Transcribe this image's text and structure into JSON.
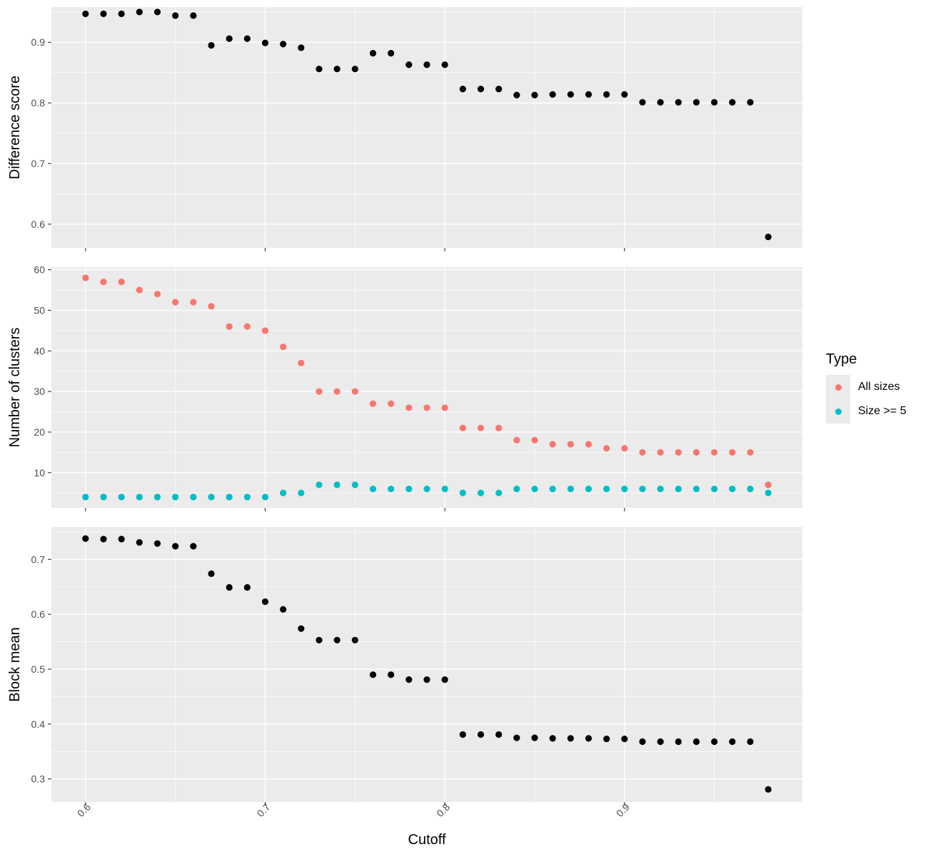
{
  "colors": {
    "panel_background": "#ebebeb",
    "grid_major": "#ffffff",
    "point_black": "#000000",
    "all_sizes": "#f8766d",
    "size_ge_5": "#00bfc4",
    "tick_text": "#4d4d4d"
  },
  "xaxis": {
    "title": "Cutoff",
    "ticks": [
      "0.6",
      "0.7",
      "0.8",
      "0.9"
    ]
  },
  "legend": {
    "title": "Type",
    "items": [
      {
        "label": "All sizes",
        "color": "#f8766d"
      },
      {
        "label": "Size >= 5",
        "color": "#00bfc4"
      }
    ]
  },
  "chart_data": [
    {
      "type": "scatter",
      "ylabel": "Difference score",
      "xlim": [
        0.581,
        0.999
      ],
      "ylim": [
        0.561,
        0.958
      ],
      "yticks": [
        0.6,
        0.7,
        0.8,
        0.9
      ],
      "xticks": [
        0.6,
        0.7,
        0.8,
        0.9
      ],
      "grid": true,
      "x": [
        0.6,
        0.61,
        0.62,
        0.63,
        0.64,
        0.65,
        0.66,
        0.67,
        0.68,
        0.69,
        0.7,
        0.71,
        0.72,
        0.73,
        0.74,
        0.75,
        0.76,
        0.77,
        0.78,
        0.79,
        0.8,
        0.81,
        0.82,
        0.83,
        0.84,
        0.85,
        0.86,
        0.87,
        0.88,
        0.89,
        0.9,
        0.91,
        0.92,
        0.93,
        0.94,
        0.95,
        0.96,
        0.97,
        0.98
      ],
      "series": [
        {
          "color": "#000000",
          "values": [
            0.947,
            0.947,
            0.947,
            0.95,
            0.95,
            0.944,
            0.944,
            0.895,
            0.906,
            0.906,
            0.899,
            0.897,
            0.891,
            0.856,
            0.856,
            0.856,
            0.882,
            0.882,
            0.863,
            0.863,
            0.863,
            0.823,
            0.823,
            0.823,
            0.813,
            0.813,
            0.814,
            0.814,
            0.814,
            0.814,
            0.814,
            0.801,
            0.801,
            0.801,
            0.801,
            0.801,
            0.801,
            0.801,
            0.579
          ]
        }
      ]
    },
    {
      "type": "scatter",
      "ylabel": "Number of clusters",
      "xlim": [
        0.581,
        0.999
      ],
      "ylim": [
        1.35,
        60.65
      ],
      "yticks": [
        10,
        20,
        30,
        40,
        50,
        60
      ],
      "xticks": [
        0.6,
        0.7,
        0.8,
        0.9
      ],
      "grid": true,
      "legend": "right",
      "x": [
        0.6,
        0.61,
        0.62,
        0.63,
        0.64,
        0.65,
        0.66,
        0.67,
        0.68,
        0.69,
        0.7,
        0.71,
        0.72,
        0.73,
        0.74,
        0.75,
        0.76,
        0.77,
        0.78,
        0.79,
        0.8,
        0.81,
        0.82,
        0.83,
        0.84,
        0.85,
        0.86,
        0.87,
        0.88,
        0.89,
        0.9,
        0.91,
        0.92,
        0.93,
        0.94,
        0.95,
        0.96,
        0.97,
        0.98
      ],
      "series": [
        {
          "name": "All sizes",
          "color": "#f8766d",
          "values": [
            58,
            57,
            57,
            55,
            54,
            52,
            52,
            51,
            46,
            46,
            45,
            41,
            37,
            30,
            30,
            30,
            27,
            27,
            26,
            26,
            26,
            21,
            21,
            21,
            18,
            18,
            17,
            17,
            17,
            16,
            16,
            15,
            15,
            15,
            15,
            15,
            15,
            15,
            7
          ]
        },
        {
          "name": "Size >= 5",
          "color": "#00bfc4",
          "values": [
            4,
            4,
            4,
            4,
            4,
            4,
            4,
            4,
            4,
            4,
            4,
            5,
            5,
            7,
            7,
            7,
            6,
            6,
            6,
            6,
            6,
            5,
            5,
            5,
            6,
            6,
            6,
            6,
            6,
            6,
            6,
            6,
            6,
            6,
            6,
            6,
            6,
            6,
            5
          ]
        }
      ]
    },
    {
      "type": "scatter",
      "ylabel": "Block mean",
      "xlim": [
        0.581,
        0.999
      ],
      "ylim": [
        0.258,
        0.759
      ],
      "yticks": [
        0.3,
        0.4,
        0.5,
        0.6,
        0.7
      ],
      "xticks": [
        0.6,
        0.7,
        0.8,
        0.9
      ],
      "grid": true,
      "x": [
        0.6,
        0.61,
        0.62,
        0.63,
        0.64,
        0.65,
        0.66,
        0.67,
        0.68,
        0.69,
        0.7,
        0.71,
        0.72,
        0.73,
        0.74,
        0.75,
        0.76,
        0.77,
        0.78,
        0.79,
        0.8,
        0.81,
        0.82,
        0.83,
        0.84,
        0.85,
        0.86,
        0.87,
        0.88,
        0.89,
        0.9,
        0.91,
        0.92,
        0.93,
        0.94,
        0.95,
        0.96,
        0.97,
        0.98
      ],
      "series": [
        {
          "color": "#000000",
          "values": [
            0.738,
            0.737,
            0.737,
            0.731,
            0.729,
            0.724,
            0.724,
            0.674,
            0.649,
            0.649,
            0.623,
            0.609,
            0.574,
            0.553,
            0.553,
            0.553,
            0.49,
            0.49,
            0.481,
            0.481,
            0.481,
            0.381,
            0.381,
            0.381,
            0.375,
            0.375,
            0.374,
            0.374,
            0.374,
            0.373,
            0.373,
            0.368,
            0.368,
            0.368,
            0.368,
            0.368,
            0.368,
            0.368,
            0.281
          ]
        }
      ]
    }
  ]
}
